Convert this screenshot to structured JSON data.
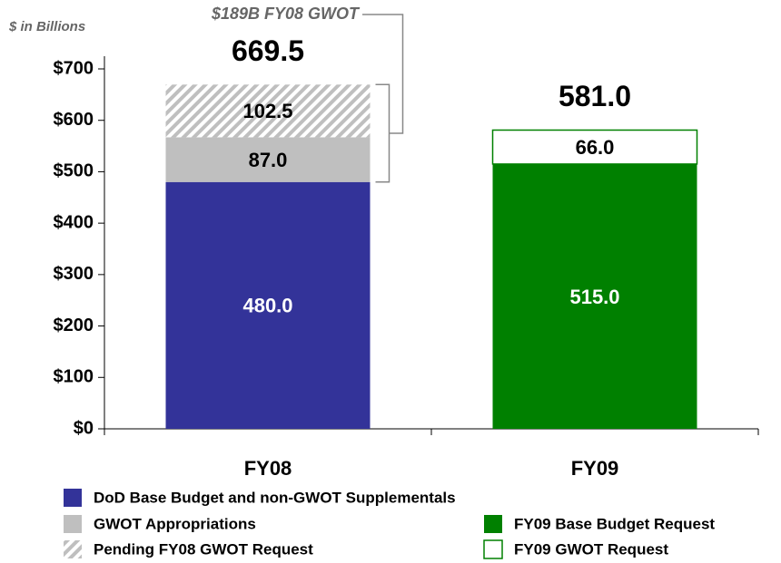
{
  "chart_data": {
    "type": "stacked_bar",
    "y_label": "$ in Billions",
    "annotation": "$189B FY08 GWOT",
    "categories": [
      "FY08",
      "FY09"
    ],
    "series": [
      {
        "name": "DoD Base Budget and non-GWOT Supplementals",
        "color": "#333399",
        "values": [
          480.0,
          null
        ],
        "value_labels": [
          "480.0",
          null
        ]
      },
      {
        "name": "GWOT Appropriations",
        "color": "#bfbfbf",
        "values": [
          87.0,
          null
        ],
        "value_labels": [
          "87.0",
          null
        ]
      },
      {
        "name": "Pending FY08 GWOT Request",
        "color": "#bfbfbf",
        "hatch": true,
        "values": [
          102.5,
          null
        ],
        "value_labels": [
          "102.5",
          null
        ]
      },
      {
        "name": "FY09 Base Budget Request",
        "color": "#008000",
        "values": [
          null,
          515.0
        ],
        "value_labels": [
          null,
          "515.0"
        ]
      },
      {
        "name": "FY09 GWOT Request",
        "color": "#ffffff",
        "border": "#008000",
        "values": [
          null,
          66.0
        ],
        "value_labels": [
          null,
          "66.0"
        ]
      }
    ],
    "totals": [
      669.5,
      581.0
    ],
    "total_labels": [
      "669.5",
      "581.0"
    ],
    "ylim": [
      0,
      700
    ],
    "yticks": [
      {
        "value": 0,
        "label": "$0"
      },
      {
        "value": 100,
        "label": "$100"
      },
      {
        "value": 200,
        "label": "$200"
      },
      {
        "value": 300,
        "label": "$300"
      },
      {
        "value": 400,
        "label": "$400"
      },
      {
        "value": 500,
        "label": "$500"
      },
      {
        "value": 600,
        "label": "$600"
      },
      {
        "value": 700,
        "label": "$700"
      }
    ],
    "grid": false
  }
}
